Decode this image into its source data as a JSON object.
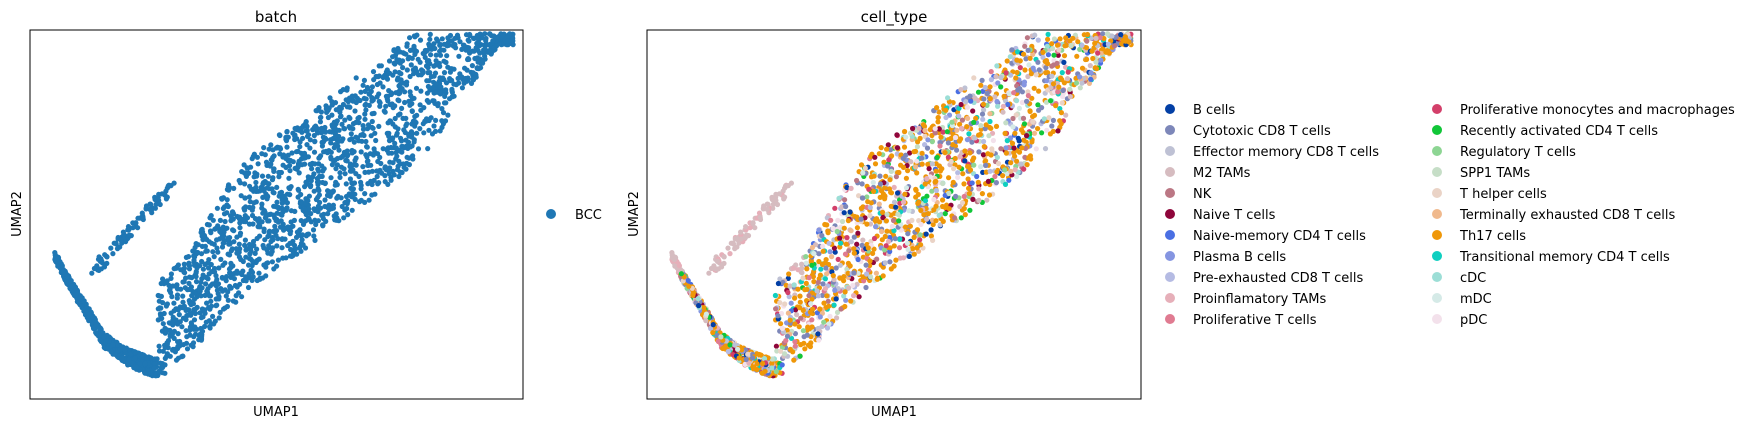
{
  "chart_data": [
    {
      "type": "scatter",
      "title": "batch",
      "xlabel": "UMAP1",
      "ylabel": "UMAP2",
      "xlim": [
        0,
        10
      ],
      "ylim": [
        0,
        10
      ],
      "grid": false,
      "legend_placement": "right",
      "series": [
        {
          "name": "BCC",
          "color": "#1f77b4"
        }
      ],
      "x": [
        0.4,
        0.8,
        1.2,
        1.5,
        2.0,
        2.5,
        3.0,
        3.5,
        4.0,
        4.5,
        5.0,
        5.5,
        6.0,
        6.5,
        7.0,
        7.5,
        8.0,
        8.5,
        9.0,
        9.5
      ],
      "y": [
        4.0,
        3.0,
        2.1,
        1.4,
        0.9,
        0.6,
        0.8,
        1.6,
        2.4,
        3.0,
        3.5,
        4.0,
        4.5,
        5.0,
        5.5,
        6.0,
        6.6,
        7.6,
        8.6,
        9.6
      ]
    },
    {
      "type": "scatter",
      "title": "cell_type",
      "xlabel": "UMAP1",
      "ylabel": "UMAP2",
      "xlim": [
        0,
        10
      ],
      "ylim": [
        0,
        10
      ],
      "grid": false,
      "legend_placement": "right",
      "series": [
        {
          "name": "B cells",
          "color": "#023fa5"
        },
        {
          "name": "Cytotoxic CD8 T cells",
          "color": "#7d87b9"
        },
        {
          "name": "Effector memory CD8 T cells",
          "color": "#bec1d4"
        },
        {
          "name": "M2 TAMs",
          "color": "#d6bcc0"
        },
        {
          "name": "NK",
          "color": "#bb7784"
        },
        {
          "name": "Naive T cells",
          "color": "#8e063b"
        },
        {
          "name": "Naive-memory CD4 T cells",
          "color": "#4a6fe3"
        },
        {
          "name": "Plasma B cells",
          "color": "#8595e1"
        },
        {
          "name": "Pre-exhausted CD8 T cells",
          "color": "#b5bbe3"
        },
        {
          "name": "Proinflamatory TAMs",
          "color": "#e6afb9"
        },
        {
          "name": "Proliferative T cells",
          "color": "#e07b91"
        },
        {
          "name": "Proliferative monocytes and macrophages",
          "color": "#d33f6a"
        },
        {
          "name": "Recently activated CD4 T cells",
          "color": "#11c638"
        },
        {
          "name": "Regulatory T cells",
          "color": "#8dd593"
        },
        {
          "name": "SPP1 TAMs",
          "color": "#c6dec7"
        },
        {
          "name": "T helper cells",
          "color": "#ead3c6"
        },
        {
          "name": "Terminally exhausted CD8 T cells",
          "color": "#f0b98d"
        },
        {
          "name": "Th17 cells",
          "color": "#ef9708"
        },
        {
          "name": "Transitional memory CD4 T cells",
          "color": "#0fcfc0"
        },
        {
          "name": "cDC",
          "color": "#9cded6"
        },
        {
          "name": "mDC",
          "color": "#d5eae7"
        },
        {
          "name": "pDC",
          "color": "#f3e1eb"
        }
      ]
    }
  ]
}
